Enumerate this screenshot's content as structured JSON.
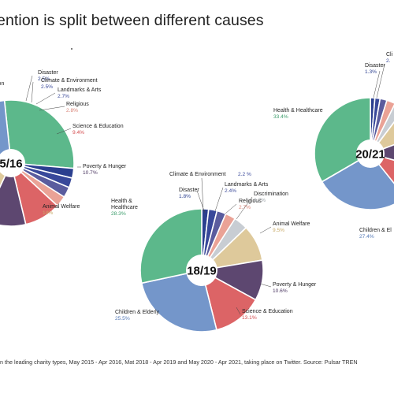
{
  "title": "ention is split between different causes",
  "footnote": "n the leading charity types, May 2015 - Apr 2016, Mat 2018 - Apr 2019 and May 2020 - Apr 2021, taking place on Twitter. Source: Pulsar TREN",
  "colors": {
    "Health & Healthcare": "#5cb88b",
    "Disaster": "#2b3f8f",
    "Climate & Environment": "#38489a",
    "Landmarks & Arts": "#5a5c9e",
    "Religious": "#eaa296",
    "Discrimination": "#c8cdd3",
    "Science & Education": "#dc6466",
    "Poverty & Hunger": "#5d4770",
    "Animal Welfare": "#dec99b",
    "Children & Elderly": "#7496ca"
  },
  "pct_colors": {
    "Health & Healthcare": "#3a9c6a",
    "Disaster": "#2b3f8f",
    "Climate & Environment": "#38489a",
    "Landmarks & Arts": "#3d4c9a",
    "Religious": "#d88074",
    "Discrimination": "#9aa0a6",
    "Science & Education": "#d4494c",
    "Poverty & Hunger": "#4a3560",
    "Animal Welfare": "#c9ab6a",
    "Children & Elderly": "#5378b6"
  },
  "chart_data": [
    {
      "type": "pie",
      "center_label": "5/16",
      "series": [
        {
          "name": "Health & Healthcare",
          "value": 28.0
        },
        {
          "name": "Disaster",
          "value": 2.5
        },
        {
          "name": "Climate & Environment",
          "value": 2.5
        },
        {
          "name": "Landmarks & Arts",
          "value": 2.7
        },
        {
          "name": "Religious",
          "value": 2.8
        },
        {
          "name": "Science & Education",
          "value": 9.4
        },
        {
          "name": "Poverty & Hunger",
          "value": 10.7
        },
        {
          "name": "Animal Welfare",
          "value": 14.0
        },
        {
          "name": "Children & Elderly",
          "value": 27.4
        }
      ],
      "labels": [
        {
          "name": "Disaster",
          "text": "Disaster",
          "pct": "2.5%"
        },
        {
          "name": "Climate & Environment",
          "text": "Climate & Environment",
          "pct": "2.5%"
        },
        {
          "name": "Landmarks & Arts",
          "text": "Landmarks & Arts",
          "pct": "2.7%"
        },
        {
          "name": "Religious",
          "text": "Religious",
          "pct": "2.8%"
        },
        {
          "name": "Science & Education",
          "text": "Science & Education",
          "pct": "9.4%"
        },
        {
          "name": "Poverty & Hunger",
          "text": "Poverty & Hunger",
          "pct": "10.7%"
        },
        {
          "name": "Animal Welfare",
          "text": "Animal Welfare",
          "pct": "14%"
        },
        {
          "name": "Discrimination",
          "text": "ion",
          "pct": ""
        }
      ]
    },
    {
      "type": "pie",
      "center_label": "18/19",
      "series": [
        {
          "name": "Disaster",
          "value": 1.8
        },
        {
          "name": "Climate & Environment",
          "value": 2.2
        },
        {
          "name": "Landmarks & Arts",
          "value": 2.4
        },
        {
          "name": "Religious",
          "value": 2.7
        },
        {
          "name": "Discrimination",
          "value": 3.7
        },
        {
          "name": "Animal Welfare",
          "value": 9.5
        },
        {
          "name": "Poverty & Hunger",
          "value": 10.6
        },
        {
          "name": "Science & Education",
          "value": 13.1
        },
        {
          "name": "Children & Elderly",
          "value": 25.5
        },
        {
          "name": "Health & Healthcare",
          "value": 28.3
        }
      ],
      "labels": [
        {
          "name": "Climate & Environment",
          "text": "Climate & Environment",
          "pct": "2.2 %"
        },
        {
          "name": "Disaster",
          "text": "Disaster",
          "pct": "1.8%"
        },
        {
          "name": "Landmarks & Arts",
          "text": "Landmarks & Arts",
          "pct": "2.4%"
        },
        {
          "name": "Religious",
          "text": "Religious",
          "pct": "2.7%"
        },
        {
          "name": "Discrimination",
          "text": "Discrimination",
          "pct": "3.7%"
        },
        {
          "name": "Animal Welfare",
          "text": "Animal Welfare",
          "pct": "9.5%"
        },
        {
          "name": "Poverty & Hunger",
          "text": "Poverty & Hunger",
          "pct": "10.6%"
        },
        {
          "name": "Science & Education",
          "text": "Science & Education",
          "pct": "13.1%"
        },
        {
          "name": "Children & Elderly",
          "text": "Children & Elderly",
          "pct": "25.5%"
        },
        {
          "name": "Health & Healthcare",
          "text": "Health &",
          "text2": "Healthcare",
          "pct": "28.3%"
        }
      ]
    },
    {
      "type": "pie",
      "center_label": "20/21",
      "series": [
        {
          "name": "Disaster",
          "value": 1.3
        },
        {
          "name": "Climate & Environment",
          "value": 1.5
        },
        {
          "name": "Landmarks & Arts",
          "value": 2.0
        },
        {
          "name": "Religious",
          "value": 2.5
        },
        {
          "name": "Discrimination",
          "value": 3.0
        },
        {
          "name": "Animal Welfare",
          "value": 9.0
        },
        {
          "name": "Poverty & Hunger",
          "value": 10.0
        },
        {
          "name": "Science & Education",
          "value": 10.0
        },
        {
          "name": "Children & Elderly",
          "value": 27.4
        },
        {
          "name": "Health & Healthcare",
          "value": 33.4
        }
      ],
      "labels": [
        {
          "name": "Disaster",
          "text": "Disaster",
          "pct": "1.3%"
        },
        {
          "name": "Climate & Environment",
          "text": "Cli",
          "pct": "2."
        },
        {
          "name": "Health & Healthcare",
          "text": "Health & Healthcare",
          "pct": "33.4%"
        },
        {
          "name": "Children & Elderly",
          "text": "Children & El",
          "pct": "27.4%"
        }
      ]
    }
  ]
}
